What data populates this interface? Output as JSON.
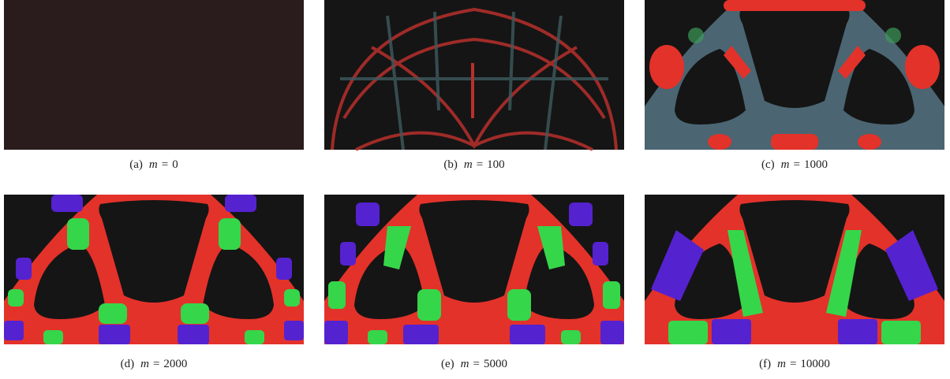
{
  "figure": {
    "panels": [
      {
        "label": "(a)",
        "variable": "m",
        "relation": "=",
        "value": 0
      },
      {
        "label": "(b)",
        "variable": "m",
        "relation": "=",
        "value": 100
      },
      {
        "label": "(c)",
        "variable": "m",
        "relation": "=",
        "value": 1000
      },
      {
        "label": "(d)",
        "variable": "m",
        "relation": "=",
        "value": 2000
      },
      {
        "label": "(e)",
        "variable": "m",
        "relation": "=",
        "value": 5000
      },
      {
        "label": "(f)",
        "variable": "m",
        "relation": "=",
        "value": 10000
      }
    ]
  }
}
